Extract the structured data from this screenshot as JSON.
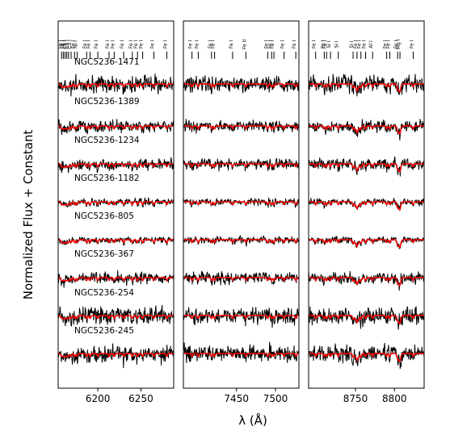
{
  "figure": {
    "ylabel": "Normalized Flux + Constant",
    "xlabel": "λ (Å)"
  },
  "colors": {
    "observed": "#000000",
    "model": "#ff0000"
  },
  "chart_data": {
    "type": "line",
    "ylabel": "Normalized Flux + Constant",
    "xlabel": "λ (Å)",
    "series": [
      {
        "name": "NGC5236-1471",
        "role": "observed spectrum and model fit"
      },
      {
        "name": "NGC5236-1389",
        "role": "observed spectrum and model fit"
      },
      {
        "name": "NGC5236-1234",
        "role": "observed spectrum and model fit"
      },
      {
        "name": "NGC5236-1182",
        "role": "observed spectrum and model fit"
      },
      {
        "name": "NGC5236-805",
        "role": "observed spectrum and model fit"
      },
      {
        "name": "NGC5236-367",
        "role": "observed spectrum and model fit"
      },
      {
        "name": "NGC5236-254",
        "role": "observed spectrum and model fit"
      },
      {
        "name": "NGC5236-245",
        "role": "observed spectrum and model fit"
      }
    ],
    "panels": [
      {
        "xlim": [
          6154,
          6288
        ],
        "xticks": [
          6200,
          6250
        ],
        "line_ids": [
          {
            "x": 6158,
            "label": "Fe I"
          },
          {
            "x": 6160,
            "label": "Fe I"
          },
          {
            "x": 6162,
            "label": "Fe I"
          },
          {
            "x": 6164,
            "label": "Ca I"
          },
          {
            "x": 6166,
            "label": "Ca I"
          },
          {
            "x": 6169,
            "label": "Ca I"
          },
          {
            "x": 6173,
            "label": "Fe I"
          },
          {
            "x": 6176,
            "label": "Ni I"
          },
          {
            "x": 6187,
            "label": "Fe I"
          },
          {
            "x": 6191,
            "label": "Fe I"
          },
          {
            "x": 6200,
            "label": "Fe I"
          },
          {
            "x": 6213,
            "label": "Fe I"
          },
          {
            "x": 6219,
            "label": "Fe I"
          },
          {
            "x": 6230,
            "label": "Fe I"
          },
          {
            "x": 6240,
            "label": "Fe I"
          },
          {
            "x": 6246,
            "label": "Fe I"
          },
          {
            "x": 6252,
            "label": "Fe I"
          },
          {
            "x": 6265,
            "label": "Fe I"
          },
          {
            "x": 6280,
            "label": "Fe I"
          }
        ]
      },
      {
        "xlim": [
          7382,
          7530
        ],
        "xticks": [
          7450,
          7500
        ],
        "line_ids": [
          {
            "x": 7393,
            "label": "Fe I"
          },
          {
            "x": 7401,
            "label": "Fe I"
          },
          {
            "x": 7418,
            "label": "Fe I"
          },
          {
            "x": 7422,
            "label": "Fe I"
          },
          {
            "x": 7445,
            "label": "Fe I"
          },
          {
            "x": 7462,
            "label": "Fe II"
          },
          {
            "x": 7490,
            "label": "Fe I"
          },
          {
            "x": 7495,
            "label": "Fe I"
          },
          {
            "x": 7498,
            "label": "Fe I"
          },
          {
            "x": 7511,
            "label": "Fe I"
          },
          {
            "x": 7526,
            "label": "Fe I"
          }
        ]
      },
      {
        "xlim": [
          8690,
          8838
        ],
        "xticks": [
          8750,
          8800
        ],
        "line_ids": [
          {
            "x": 8699,
            "label": "Fe I"
          },
          {
            "x": 8710,
            "label": "Fe I"
          },
          {
            "x": 8713,
            "label": "Fe I"
          },
          {
            "x": 8718,
            "label": "Si I"
          },
          {
            "x": 8728,
            "label": "Si I"
          },
          {
            "x": 8747,
            "label": "Si I"
          },
          {
            "x": 8752,
            "label": "Fe I"
          },
          {
            "x": 8757,
            "label": "Fe I"
          },
          {
            "x": 8763,
            "label": "Fe I"
          },
          {
            "x": 8772,
            "label": "Al I"
          },
          {
            "x": 8790,
            "label": "Fe I"
          },
          {
            "x": 8794,
            "label": "Fe I"
          },
          {
            "x": 8804,
            "label": "Fe I"
          },
          {
            "x": 8807,
            "label": "Mg I"
          },
          {
            "x": 8824,
            "label": "Fe I"
          }
        ]
      }
    ]
  }
}
